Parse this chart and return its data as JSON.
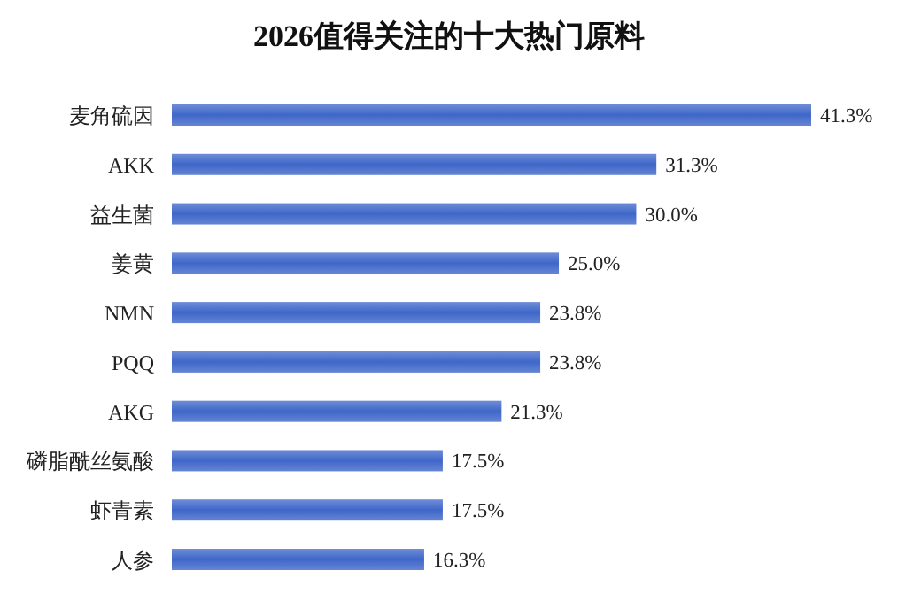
{
  "chart_data": {
    "type": "bar",
    "orientation": "horizontal",
    "title": "2026值得关注的十大热门原料",
    "categories": [
      "麦角硫因",
      "AKK",
      "益生菌",
      "姜黄",
      "NMN",
      "PQQ",
      "AKG",
      "磷脂酰丝氨酸",
      "虾青素",
      "人参"
    ],
    "values": [
      41.3,
      31.3,
      30.0,
      25.0,
      23.8,
      23.8,
      21.3,
      17.5,
      17.5,
      16.3
    ],
    "value_labels": [
      "41.3%",
      "31.3%",
      "30.0%",
      "25.0%",
      "23.8%",
      "23.8%",
      "21.3%",
      "17.5%",
      "17.5%",
      "16.3%"
    ],
    "color": "#3f67c9"
  }
}
